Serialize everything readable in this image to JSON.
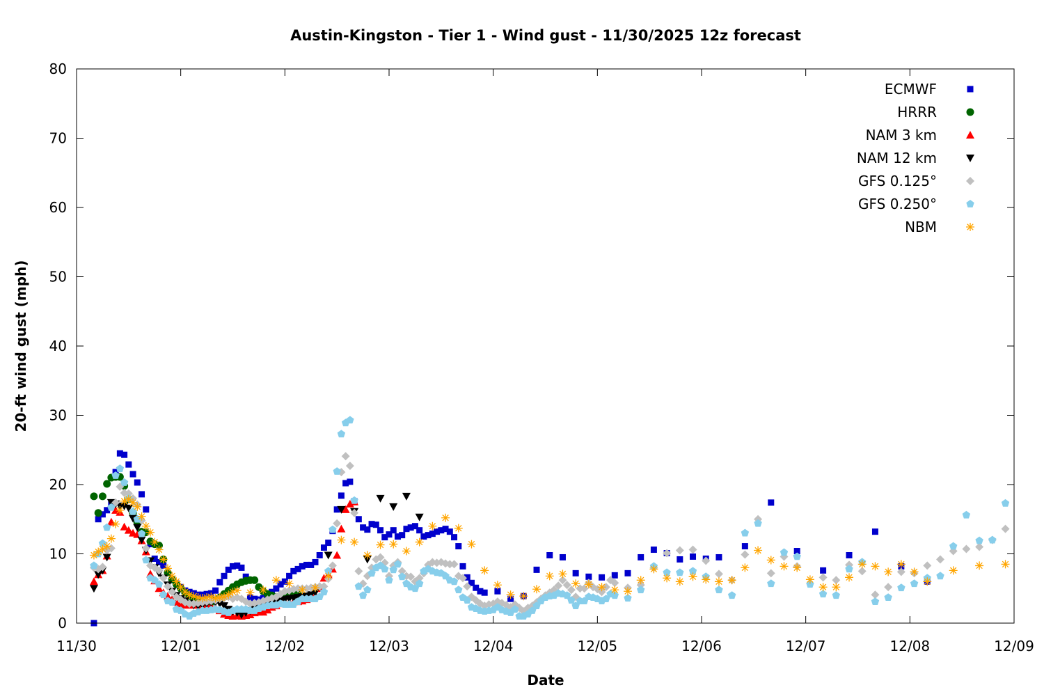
{
  "chart_data": {
    "type": "scatter",
    "title": "Austin-Kingston - Tier 1 - Wind gust - 11/30/2025 12z forecast",
    "xlabel": "Date",
    "ylabel": "20-ft wind gust (mph)",
    "ylim": [
      0,
      80
    ],
    "yticks": [
      "0",
      "10",
      "20",
      "30",
      "40",
      "50",
      "60",
      "70",
      "80"
    ],
    "xlim": [
      "11/30 00:00",
      "12/09 00:00"
    ],
    "xticks": [
      "11/30",
      "12/01",
      "12/02",
      "12/03",
      "12/04",
      "12/05",
      "12/06",
      "12/07",
      "12/08",
      "12/09"
    ],
    "grid": false,
    "legend_position": "top-right",
    "series": [
      {
        "name": "ECMWF",
        "color": "#0000cc",
        "marker": "square",
        "segments": [
          {
            "start": "11/30 04:00",
            "step_hours": 1,
            "values": [
              0,
              15.0,
              15.7,
              16.3,
              17.2,
              21.8,
              24.5,
              24.3,
              22.9,
              21.5,
              20.3,
              18.6,
              16.4,
              11.4,
              9.3,
              8.8,
              8.3,
              7.2,
              6.2,
              5.7,
              5.2,
              4.7,
              4.5,
              4.3,
              4.1,
              4.1,
              4.2,
              4.3,
              4.7,
              5.9,
              6.8,
              7.7,
              8.2,
              8.3,
              8.0,
              6.7,
              3.7,
              3.5,
              3.4,
              3.6,
              4.0,
              4.5,
              5.0,
              5.6,
              6.0,
              6.8,
              7.5,
              7.8,
              8.2,
              8.4,
              8.4,
              8.8,
              9.8,
              10.9,
              11.6,
              13.3,
              16.4,
              18.4,
              20.2,
              20.4,
              17.6,
              15.0,
              13.8,
              13.5,
              14.3,
              14.2,
              13.4,
              12.4,
              12.8,
              13.4,
              12.5,
              12.7,
              13.6,
              13.8,
              14.0,
              13.4,
              12.5,
              12.7,
              12.9,
              13.2,
              13.4,
              13.6,
              13.2,
              12.4,
              11.1,
              8.2,
              6.6,
              5.8,
              5.1,
              4.6,
              4.4
            ]
          },
          {
            "start": "12/04 01:00",
            "step_hours": 3,
            "values": [
              4.6,
              3.5,
              3.9,
              7.7,
              9.8,
              9.5,
              7.2,
              6.7,
              6.6,
              6.9,
              7.2,
              9.5,
              10.6,
              10.1,
              9.2,
              9.6,
              9.3,
              9.5
            ]
          },
          {
            "start": "12/06 10:00",
            "step_hours": 6,
            "values": [
              11.1,
              17.4,
              10.4,
              7.6,
              9.8,
              13.2,
              8.2,
              6.0
            ]
          }
        ]
      },
      {
        "name": "HRRR",
        "color": "#006400",
        "marker": "circle",
        "segments": [
          {
            "start": "11/30 04:00",
            "step_hours": 1,
            "values": [
              18.3,
              15.9,
              18.3,
              20.1,
              21.0,
              21.1,
              21.1,
              19.8,
              17.9,
              15.9,
              14.5,
              13.2,
              13.1,
              11.8,
              11.4,
              11.2,
              9.2,
              7.3,
              6.3,
              5.6,
              5.0,
              4.4,
              3.9,
              3.5,
              3.2,
              3.0,
              2.9,
              3.0,
              3.3,
              3.7,
              4.2,
              4.7,
              5.2,
              5.6,
              5.9,
              6.1,
              6.2,
              6.2,
              5.2,
              4.6,
              4.2,
              4.0,
              3.8,
              3.9,
              4.1,
              4.3,
              4.3,
              4.2
            ]
          }
        ]
      },
      {
        "name": "NAM 3 km",
        "color": "#ff0000",
        "marker": "triangle-up",
        "segments": [
          {
            "start": "11/30 04:00",
            "step_hours": 1,
            "values": [
              6.0,
              7.0,
              7.6,
              9.7,
              14.6,
              16.3,
              16.0,
              13.9,
              13.4,
              13.0,
              12.8,
              11.9,
              10.3,
              7.1,
              6.1,
              5.0,
              4.4,
              3.9,
              3.4,
              3.0,
              2.8,
              2.6,
              2.6,
              2.6,
              2.6,
              2.6,
              2.6,
              2.4,
              2.2,
              1.8,
              1.3,
              1.1,
              1.0,
              1.1,
              1.0,
              1.1,
              1.2,
              1.5,
              1.6,
              1.6,
              1.9,
              2.3,
              2.5,
              2.8,
              2.9,
              3.0,
              3.1,
              3.1,
              3.2,
              3.4,
              3.6,
              4.0,
              5.0,
              6.5,
              7.0,
              7.8,
              9.8,
              13.6,
              16.4,
              17.2,
              17.5
            ]
          }
        ]
      },
      {
        "name": "NAM 12 km",
        "color": "#000000",
        "marker": "triangle-down",
        "segments": [
          {
            "start": "11/30 04:00",
            "step_hours": 1,
            "values": [
              5.0,
              7.0,
              7.6,
              9.5,
              17.4,
              17.2,
              16.9,
              16.9,
              16.6,
              15.1,
              13.8,
              12.0,
              10.5,
              9.0,
              8.0,
              7.2,
              6.5,
              5.5,
              4.6,
              4.0,
              3.5,
              3.2,
              2.8,
              2.6,
              2.5,
              2.6,
              2.8,
              3.0,
              3.0,
              2.8,
              2.5,
              2.0,
              1.7,
              1.5,
              1.2,
              1.5,
              1.8,
              2.0,
              2.2,
              2.5,
              2.7,
              2.9,
              3.1,
              3.3,
              3.4,
              3.5,
              3.6,
              3.7,
              3.8,
              3.9,
              4.1,
              4.4
            ]
          },
          {
            "start": "12/02 10:00",
            "step_hours": 3,
            "values": [
              9.8,
              16.4,
              16.1,
              9.2,
              18.0,
              16.8,
              18.3,
              15.3
            ]
          }
        ]
      },
      {
        "name": "GFS 0.125°",
        "color": "#c0c0c0",
        "marker": "diamond",
        "segments": [
          {
            "start": "11/30 04:00",
            "step_hours": 1,
            "values": [
              8.0,
              7.8,
              8.1,
              10.5,
              10.8,
              17.4,
              19.7,
              18.8,
              18.7,
              18.0,
              17.1,
              14.8,
              10.8,
              8.3,
              8.0,
              7.6,
              6.5,
              5.3,
              4.5,
              3.8,
              3.4,
              3.0,
              2.8,
              2.8,
              2.9,
              3.0,
              3.1,
              3.2,
              3.3,
              3.5,
              3.6,
              3.8,
              3.5,
              3.7,
              3.5,
              3.1,
              2.8,
              2.9,
              3.0,
              3.2,
              3.4,
              3.6,
              3.8,
              4.2,
              4.6,
              4.7,
              4.9,
              5.0,
              5.0,
              5.0,
              5.1,
              5.2,
              5.3,
              5.3,
              6.4,
              8.3,
              14.4,
              21.8,
              24.1,
              22.7,
              15.9,
              7.5,
              5.7,
              6.8,
              8.0,
              9.2,
              9.5,
              8.7,
              6.8,
              8.3,
              8.8,
              7.5,
              6.8,
              6.7,
              6.0,
              6.5,
              7.2,
              8.4,
              8.8,
              8.7,
              8.8,
              8.6,
              8.5,
              8.5,
              6.8,
              6.5,
              5.3,
              3.8,
              3.3,
              2.8,
              2.5,
              2.7,
              2.8,
              3.1,
              2.9,
              2.6,
              2.3,
              2.7,
              2.2,
              1.7,
              2.2,
              2.5,
              3.0,
              3.5,
              4.0,
              4.4,
              4.8,
              5.4,
              6.2,
              5.5,
              4.8,
              3.8,
              5.0,
              5.0,
              5.8,
              5.2,
              4.9,
              4.5,
              5.2,
              6.2
            ]
          },
          {
            "start": "12/05 04:00",
            "step_hours": 3,
            "values": [
              5.8,
              5.1,
              5.5,
              8.0,
              10.1,
              10.5,
              10.6,
              9.0,
              7.1,
              6.2,
              9.9,
              15.0,
              7.2,
              9.6,
              8.2,
              null,
              6.6,
              6.2,
              8.4,
              7.5,
              4.1,
              5.2,
              7.4,
              7.2,
              8.3,
              9.2,
              10.4,
              10.7,
              11.0,
              12.0,
              13.6
            ]
          }
        ]
      },
      {
        "name": "GFS 0.250°",
        "color": "#87ceeb",
        "marker": "pentagon",
        "segments": [
          {
            "start": "11/30 04:00",
            "step_hours": 1,
            "values": [
              8.3,
              10.0,
              11.5,
              13.8,
              16.7,
              21.3,
              22.3,
              20.3,
              18.0,
              16.1,
              15.0,
              12.9,
              9.1,
              6.5,
              6.2,
              5.6,
              4.1,
              3.2,
              3.0,
              2.0,
              1.8,
              1.3,
              1.0,
              1.4,
              1.6,
              1.8,
              1.8,
              1.9,
              2.0,
              1.9,
              1.7,
              1.5,
              1.8,
              2.0,
              2.0,
              2.0,
              1.8,
              1.8,
              2.1,
              2.3,
              2.5,
              2.6,
              2.6,
              2.8,
              2.7,
              2.7,
              2.7,
              3.1,
              3.5,
              3.5,
              3.5,
              3.5,
              3.8,
              4.5,
              7.5,
              13.5,
              21.9,
              27.3,
              28.9,
              29.3,
              17.7,
              5.3,
              4.0,
              4.8,
              7.2,
              8.0,
              8.3,
              7.8,
              6.2,
              7.7,
              8.5,
              6.7,
              5.7,
              5.2,
              5.0,
              5.7,
              7.5,
              7.8,
              7.5,
              7.3,
              7.2,
              6.8,
              6.2,
              6.0,
              4.8,
              3.7,
              3.3,
              2.3,
              2.1,
              1.8,
              1.7,
              1.8,
              1.9,
              2.3,
              1.9,
              1.7,
              1.5,
              2.0,
              1.0,
              1.0,
              1.3,
              1.8,
              2.5,
              3.2,
              3.7,
              3.9,
              4.0,
              4.3,
              4.2,
              4.0,
              3.3,
              2.5,
              3.2,
              3.2,
              3.8,
              3.7,
              3.5,
              3.2,
              3.5,
              4.2
            ]
          },
          {
            "start": "12/05 04:00",
            "step_hours": 3,
            "values": [
              4.0,
              3.6,
              4.8,
              8.2,
              7.3,
              7.3,
              7.5,
              6.7,
              4.8,
              4.0,
              13.0,
              14.4,
              5.7,
              10.2,
              9.6,
              5.6,
              4.2,
              4.0,
              7.8,
              8.8,
              3.1,
              3.7,
              5.1,
              5.7,
              6.5,
              6.8,
              11.1,
              15.6,
              11.9,
              12.0,
              17.3
            ]
          }
        ]
      },
      {
        "name": "NBM",
        "color": "#ffa500",
        "marker": "asterisk",
        "segments": [
          {
            "start": "11/30 04:00",
            "step_hours": 1,
            "values": [
              9.8,
              10.3,
              10.7,
              11.1,
              12.2,
              14.3,
              16.3,
              17.6,
              17.9,
              17.4,
              16.8,
              15.4,
              14.0,
              13.1,
              11.7,
              10.6,
              9.2,
              7.9,
              6.8,
              6.0,
              5.2,
              4.5,
              4.1,
              3.9,
              3.7,
              3.6,
              3.7,
              3.8,
              3.6,
              3.7,
              3.8,
              4.1,
              4.5,
              4.7
            ]
          },
          {
            "start": "12/01 16:00",
            "step_hours": 3,
            "values": [
              4.4,
              4.8,
              6.2,
              5.7,
              4.8,
              5.1,
              6.8,
              12.0,
              11.7,
              9.8,
              11.3,
              11.4,
              10.4,
              11.7,
              14.0,
              15.2,
              13.7,
              11.4,
              7.6,
              5.5,
              4.1,
              3.9,
              4.9,
              6.8,
              7.1,
              5.7,
              5.6,
              5.2,
              4.8,
              4.6,
              6.2,
              7.8,
              6.5,
              6.0,
              6.7,
              6.3,
              6.0,
              6.2,
              8.0,
              10.5,
              9.1,
              8.2,
              8.0,
              6.3,
              5.2,
              5.2,
              6.6,
              8.5,
              8.2,
              7.4,
              8.5,
              7.4,
              6.0
            ]
          },
          {
            "start": "12/08 10:00",
            "step_hours": 6,
            "values": [
              7.6,
              8.3,
              8.5
            ]
          }
        ]
      }
    ]
  }
}
